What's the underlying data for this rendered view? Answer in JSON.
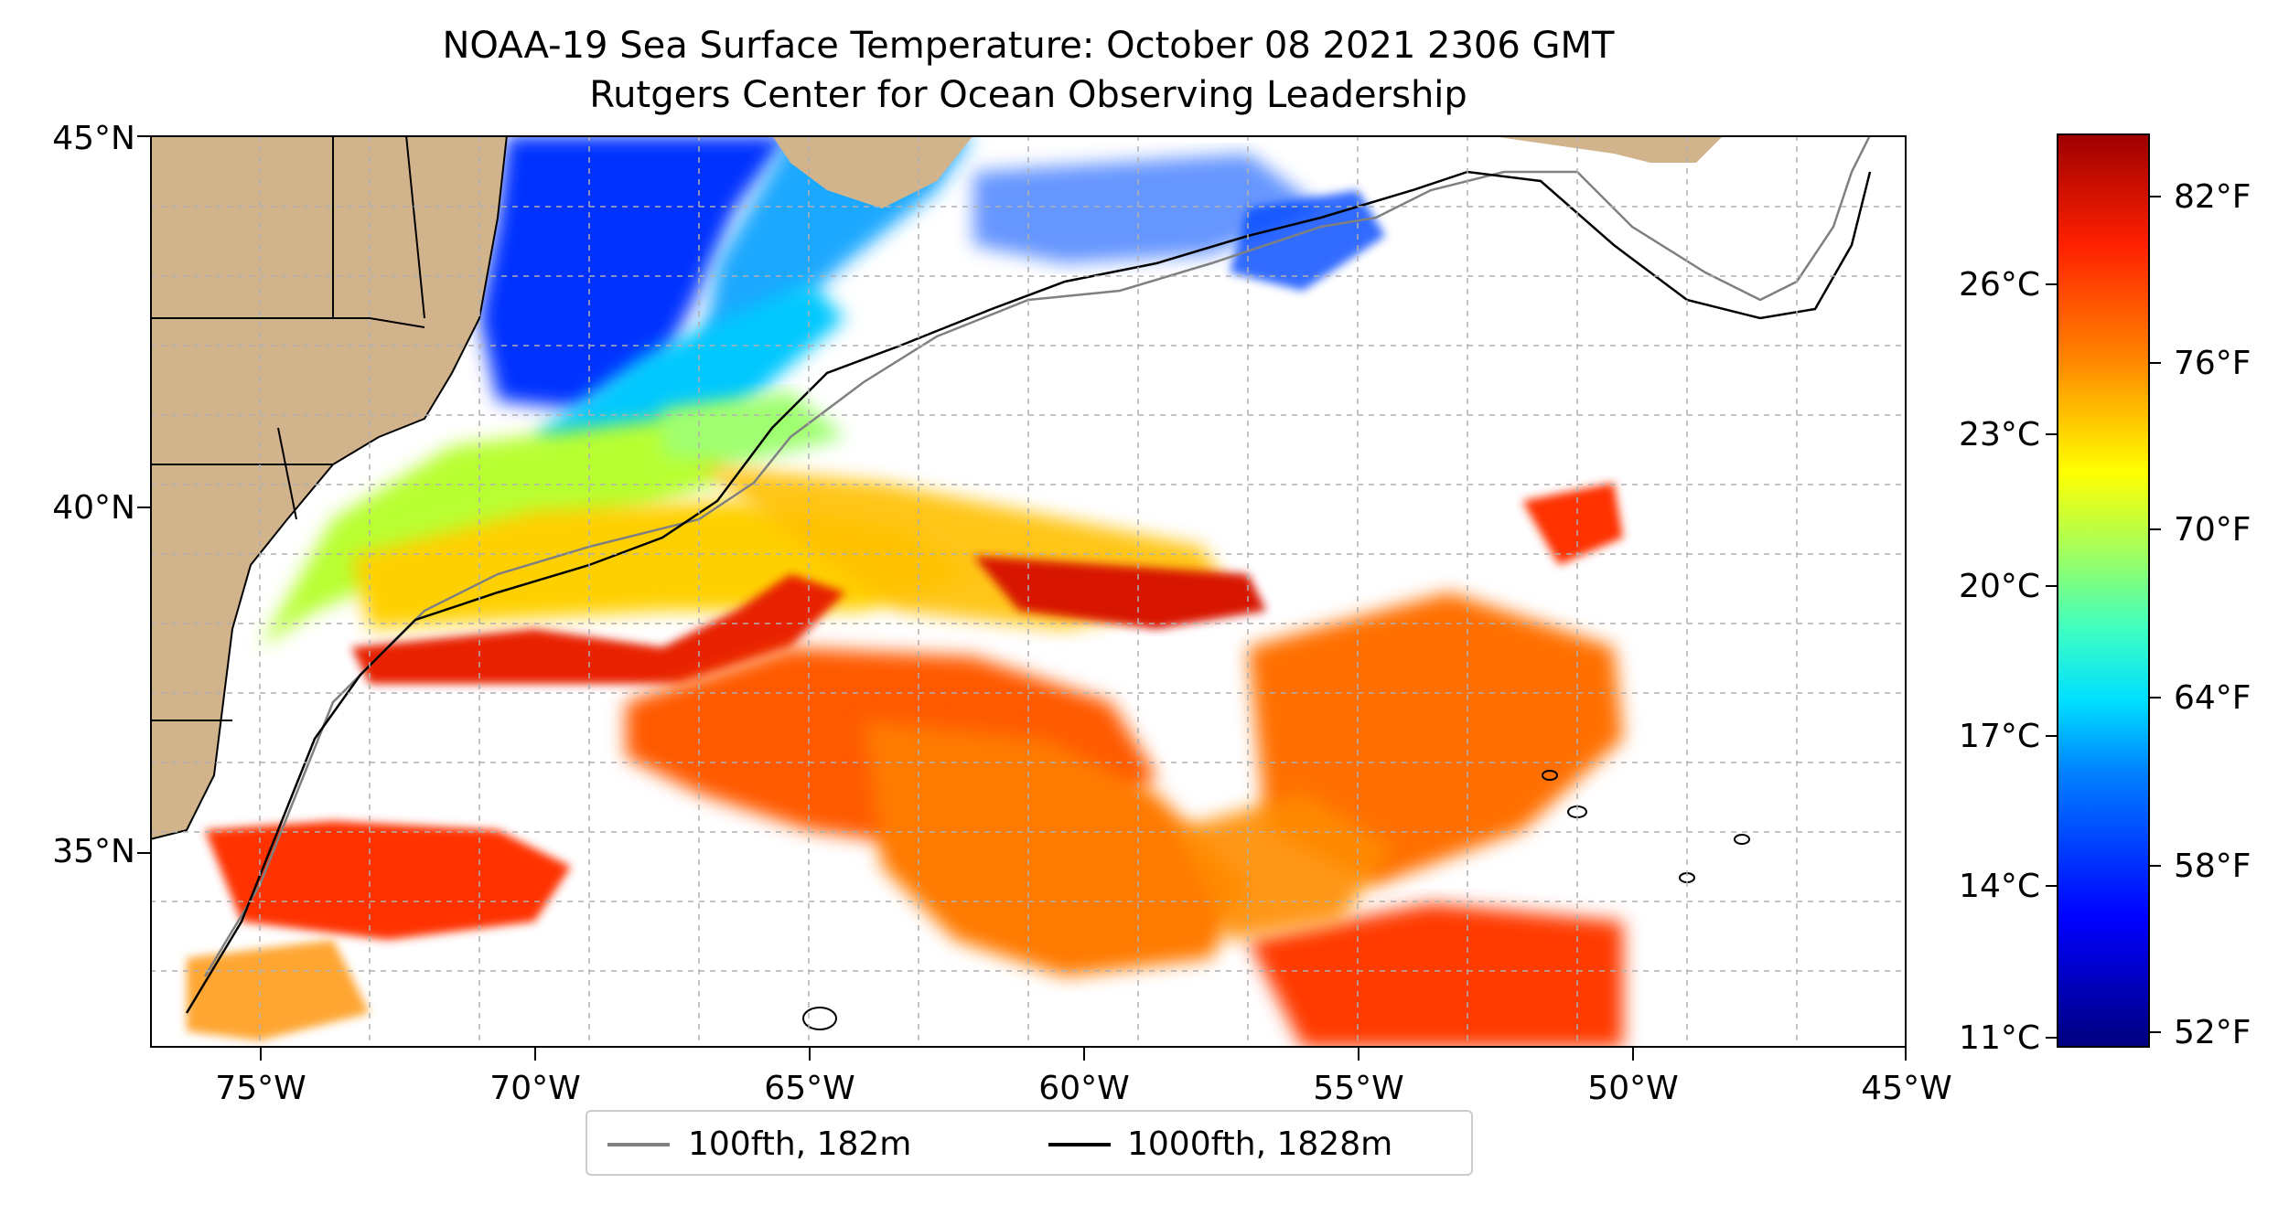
{
  "title_line1": "NOAA-19 Sea Surface Temperature: October 08 2021 2306 GMT",
  "title_line2": "Rutgers Center for Ocean Observing Leadership",
  "x_ticks": [
    "75°W",
    "70°W",
    "65°W",
    "60°W",
    "55°W",
    "50°W",
    "45°W"
  ],
  "y_ticks": [
    "45°N",
    "40°N",
    "35°N"
  ],
  "legend": {
    "item1": {
      "label": "100fth, 182m",
      "color": "#808080"
    },
    "item2": {
      "label": "1000fth, 1828m",
      "color": "#000000"
    }
  },
  "colorbar": {
    "celsius": [
      "26°C",
      "23°C",
      "20°C",
      "17°C",
      "14°C",
      "11°C"
    ],
    "fahrenheit": [
      "82°F",
      "76°F",
      "70°F",
      "64°F",
      "58°F",
      "52°F"
    ]
  },
  "colors": {
    "land": "#d2b48c",
    "ocean_missing": "#ffffff",
    "grid": "#b0b0b0"
  }
}
